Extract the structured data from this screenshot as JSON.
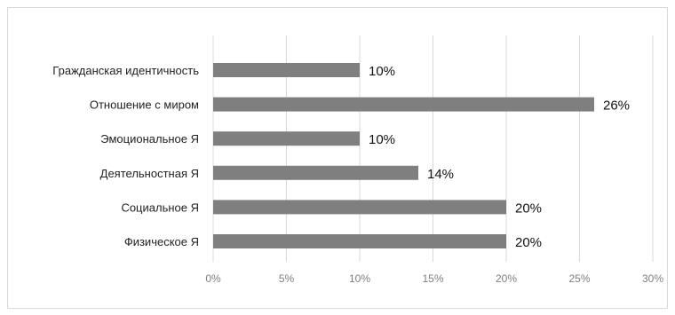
{
  "chart_data": {
    "type": "bar",
    "orientation": "horizontal",
    "categories": [
      "Гражданская идентичность",
      "Отношение с миром",
      "Эмоциональное Я",
      "Деятельностная Я",
      "Социальное Я",
      "Физическое Я"
    ],
    "values": [
      10,
      26,
      10,
      14,
      20,
      20
    ],
    "data_labels": [
      "10%",
      "26%",
      "10%",
      "14%",
      "20%",
      "20%"
    ],
    "xlim": [
      0,
      30
    ],
    "x_ticks": [
      0,
      5,
      10,
      15,
      20,
      25,
      30
    ],
    "x_tick_labels": [
      "0%",
      "5%",
      "10%",
      "15%",
      "20%",
      "25%",
      "30%"
    ],
    "title": "",
    "xlabel": "",
    "ylabel": "",
    "grid": "vertical",
    "legend": "none",
    "bar_color": "#7f7f7f",
    "grid_color": "#d9d9d9"
  }
}
